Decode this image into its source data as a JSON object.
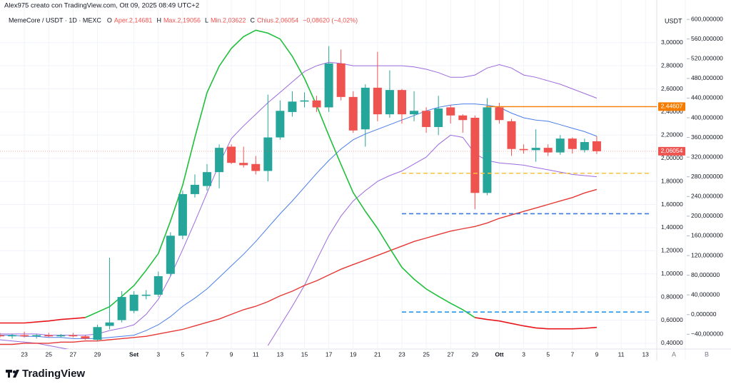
{
  "chart_data": {
    "type": "candlestick",
    "credit": "Alex975 creato con TradingView.com, Ott 09, 2025 08:49 UTC+2",
    "symbol": "MemeCore / USDT · 1D · MEXC",
    "ohlc_legend": [
      "O",
      "Aper.2,14681",
      "H",
      "Max.2,19056",
      "L",
      "Min.2,03622",
      "C",
      "Chius.2,06054",
      "−0,08620 (−4,02%)"
    ],
    "axis_unit": "USDT",
    "pane_labels": [
      "A",
      "B"
    ],
    "brand": "TradingView",
    "categories": [
      null,
      null,
      "23",
      null,
      "25",
      null,
      "27",
      null,
      "29",
      null,
      null,
      "Set",
      null,
      "3",
      null,
      "5",
      null,
      "7",
      null,
      "9",
      null,
      "11",
      null,
      "13",
      null,
      "15",
      null,
      "17",
      null,
      "19",
      null,
      "21",
      null,
      "23",
      null,
      "25",
      null,
      "27",
      null,
      "29",
      null,
      "Ott",
      null,
      "3",
      null,
      "5",
      null,
      "7",
      null,
      "9",
      null,
      "11",
      null,
      "13"
    ],
    "open": [
      0.47,
      0.46,
      0.47,
      0.46,
      0.47,
      0.46,
      0.47,
      0.46,
      0.43,
      0.55,
      0.6,
      0.68,
      0.81,
      0.82,
      1.0,
      1.33,
      1.69,
      1.76,
      1.88,
      2.1,
      1.96,
      1.95,
      1.89,
      2.18,
      2.4,
      2.49,
      2.5,
      2.44,
      2.82,
      2.53,
      2.25,
      2.61,
      2.38,
      2.59,
      2.38,
      2.41,
      2.27,
      2.44,
      2.37,
      2.35,
      1.7,
      2.44,
      2.32,
      2.08,
      2.07,
      2.09,
      2.05,
      2.17,
      2.07,
      2.14681,
      null,
      null,
      null,
      null
    ],
    "high": [
      0.49,
      0.48,
      0.5,
      0.48,
      0.49,
      0.48,
      0.49,
      0.47,
      0.56,
      1.14,
      0.85,
      0.85,
      0.86,
      1.02,
      1.36,
      1.72,
      1.86,
      1.95,
      2.12,
      2.12,
      2.1,
      2.02,
      2.55,
      2.5,
      2.58,
      2.57,
      2.54,
      2.97,
      2.94,
      2.58,
      2.64,
      2.92,
      2.76,
      2.6,
      2.58,
      2.44,
      2.54,
      2.46,
      2.38,
      2.37,
      2.52,
      2.48,
      2.34,
      2.12,
      2.25,
      2.12,
      2.2,
      2.18,
      2.17,
      2.19056,
      null,
      null,
      null,
      null
    ],
    "low": [
      0.45,
      0.44,
      0.45,
      0.44,
      0.45,
      0.45,
      0.45,
      0.43,
      0.42,
      0.52,
      0.58,
      0.66,
      0.78,
      0.8,
      0.98,
      1.3,
      1.66,
      1.72,
      1.74,
      1.95,
      1.92,
      1.86,
      1.8,
      2.16,
      2.36,
      2.44,
      2.4,
      2.4,
      2.5,
      2.22,
      2.1,
      2.32,
      2.35,
      2.3,
      2.32,
      2.22,
      2.2,
      2.3,
      2.22,
      1.56,
      1.68,
      2.3,
      2.02,
      2.04,
      1.97,
      2.02,
      2.03,
      2.04,
      2.05,
      2.03622,
      null,
      null,
      null,
      null
    ],
    "close": [
      0.46,
      0.47,
      0.46,
      0.47,
      0.46,
      0.47,
      0.46,
      0.44,
      0.54,
      0.58,
      0.8,
      0.82,
      0.82,
      0.98,
      1.33,
      1.69,
      1.77,
      1.88,
      2.09,
      1.96,
      1.94,
      1.89,
      2.18,
      2.41,
      2.49,
      2.5,
      2.44,
      2.82,
      2.53,
      2.24,
      2.61,
      2.38,
      2.59,
      2.38,
      2.41,
      2.27,
      2.43,
      2.37,
      2.33,
      1.7,
      2.44,
      2.33,
      2.08,
      2.07,
      2.09,
      2.05,
      2.17,
      2.08,
      2.14,
      2.06054,
      null,
      null,
      null,
      null
    ],
    "up_color": "#26a69a",
    "down_color": "#ef5350",
    "series": [
      {
        "color": "#9c6ade",
        "values": [
          0.48,
          0.48,
          0.48,
          0.48,
          0.47,
          0.47,
          0.47,
          0.47,
          0.48,
          0.51,
          0.53,
          0.56,
          0.65,
          0.78,
          0.98,
          1.21,
          1.45,
          1.7,
          1.95,
          2.17,
          2.28,
          2.38,
          2.48,
          2.57,
          2.66,
          2.75,
          2.8,
          2.83,
          2.82,
          2.8,
          2.8,
          2.8,
          2.8,
          2.8,
          2.79,
          2.77,
          2.74,
          2.7,
          2.7,
          2.72,
          2.78,
          2.81,
          2.78,
          2.72,
          2.7,
          2.67,
          2.64,
          2.6,
          2.56,
          2.52,
          null,
          null,
          null,
          null
        ]
      },
      {
        "color": "#9c6ade",
        "values": [
          0.43,
          0.42,
          0.41,
          0.4,
          0.38,
          0.36,
          0.34,
          null,
          null,
          null,
          null,
          null,
          null,
          null,
          null,
          null,
          null,
          null,
          null,
          null,
          null,
          null,
          0.38,
          0.55,
          0.72,
          0.9,
          1.12,
          1.33,
          1.5,
          1.63,
          1.72,
          1.8,
          1.85,
          1.89,
          1.95,
          2.01,
          2.12,
          2.2,
          2.18,
          2.04,
          1.98,
          1.96,
          1.95,
          1.94,
          1.92,
          1.9,
          1.88,
          1.86,
          1.85,
          1.84,
          null,
          null,
          null,
          null
        ]
      },
      {
        "color": "#4a7ee8",
        "values": [
          0.47,
          0.47,
          0.46,
          0.46,
          0.45,
          0.45,
          0.44,
          0.44,
          0.44,
          0.45,
          0.46,
          0.47,
          0.51,
          0.56,
          0.63,
          0.72,
          0.79,
          0.87,
          0.97,
          1.07,
          1.17,
          1.28,
          1.4,
          1.52,
          1.63,
          1.75,
          1.87,
          1.98,
          2.08,
          2.16,
          2.21,
          2.25,
          2.29,
          2.33,
          2.37,
          2.41,
          2.44,
          2.46,
          2.47,
          2.47,
          2.46,
          2.44,
          2.39,
          2.35,
          2.33,
          2.32,
          2.29,
          2.26,
          2.23,
          2.19,
          null,
          null,
          null,
          null
        ]
      },
      {
        "color": "#e53935",
        "values": [
          0.39,
          0.39,
          0.4,
          0.4,
          0.4,
          0.41,
          0.41,
          0.42,
          0.42,
          0.43,
          0.44,
          0.45,
          0.46,
          0.48,
          0.5,
          0.52,
          0.55,
          0.58,
          0.61,
          0.65,
          0.69,
          0.72,
          0.76,
          0.81,
          0.85,
          0.9,
          0.94,
          0.99,
          1.04,
          1.08,
          1.12,
          1.16,
          1.2,
          1.24,
          1.28,
          1.31,
          1.34,
          1.37,
          1.39,
          1.41,
          1.44,
          1.48,
          1.51,
          1.54,
          1.57,
          1.6,
          1.63,
          1.66,
          1.7,
          1.73,
          null,
          null,
          null,
          null
        ]
      },
      {
        "color": "#1fbf3a",
        "axis": "y2",
        "values": [
          null,
          null,
          null,
          null,
          null,
          null,
          null,
          -6,
          5,
          16,
          37,
          59,
          90,
          124,
          190,
          263,
          360,
          451,
          505,
          541,
          565,
          578,
          572,
          560,
          525,
          480,
          425,
          364,
          305,
          248,
          210,
          175,
          135,
          96,
          72,
          52,
          37,
          23,
          10,
          -6,
          null,
          null,
          null,
          null,
          null,
          null,
          null,
          null,
          null,
          null,
          null,
          null,
          null,
          null
        ]
      },
      {
        "color": "#e8161b",
        "axis": "y2",
        "values": [
          -17,
          -17,
          -17,
          -15,
          -13,
          -10,
          -8,
          -6,
          null,
          null,
          null,
          null,
          null,
          null,
          null,
          null,
          null,
          null,
          null,
          null,
          null,
          null,
          null,
          null,
          null,
          null,
          null,
          null,
          null,
          null,
          null,
          null,
          null,
          null,
          null,
          null,
          null,
          null,
          null,
          -6,
          -10,
          -13,
          -18,
          -23,
          -27,
          -29,
          -29,
          -29,
          -28,
          -26,
          null,
          null,
          null,
          null
        ]
      }
    ],
    "levels": [
      {
        "value": 2.44607,
        "label": "2,44607",
        "color": "#f57c00",
        "dash": false
      },
      {
        "value": 1.87,
        "color": "#f9c23c",
        "dash": true
      },
      {
        "value": 1.52,
        "color": "#3a78e6",
        "dash": true
      },
      {
        "value": 0.67,
        "color": "#2196f3",
        "dash": true
      }
    ],
    "last_price": {
      "value": 2.06054,
      "label": "2,06054",
      "color": "#ef5350"
    },
    "ylim": [
      0.35,
      3.35
    ],
    "yticks": [
      {
        "value": 0.4,
        "label": "0,40000"
      },
      {
        "value": 0.6,
        "label": "0,60000"
      },
      {
        "value": 0.8,
        "label": "0,80000"
      },
      {
        "value": 1.0,
        "label": "1,00000"
      },
      {
        "value": 1.2,
        "label": "1,20000"
      },
      {
        "value": 1.4,
        "label": "1,40000"
      },
      {
        "value": 1.6,
        "label": "1,60000"
      },
      {
        "value": 1.8,
        "label": "1,80000"
      },
      {
        "value": 2.0,
        "label": "2,00000"
      },
      {
        "value": 2.2,
        "label": "2,20000"
      },
      {
        "value": 2.4,
        "label": "2,40000"
      },
      {
        "value": 2.6,
        "label": "2,60000"
      },
      {
        "value": 2.8,
        "label": "2,80000"
      },
      {
        "value": 3.0,
        "label": "3,00000"
      }
    ],
    "y2lim": [
      -70,
      635
    ],
    "y2ticks": [
      {
        "value": -40,
        "label": "−40,000000"
      },
      {
        "value": 0,
        "label": "0,000000"
      },
      {
        "value": 40,
        "label": "40,000000"
      },
      {
        "value": 80,
        "label": "80,000000"
      },
      {
        "value": 120,
        "label": "120,000000"
      },
      {
        "value": 160,
        "label": "160,000000"
      },
      {
        "value": 200,
        "label": "200,000000"
      },
      {
        "value": 240,
        "label": "240,000000"
      },
      {
        "value": 280,
        "label": "280,000000"
      },
      {
        "value": 320,
        "label": "320,000000"
      },
      {
        "value": 360,
        "label": "360,000000"
      },
      {
        "value": 400,
        "label": "400,000000"
      },
      {
        "value": 440,
        "label": "440,000000"
      },
      {
        "value": 480,
        "label": "480,000000"
      },
      {
        "value": 520,
        "label": "520,000000"
      },
      {
        "value": 560,
        "label": "560,000000"
      },
      {
        "value": 600,
        "label": "600,000000"
      }
    ],
    "grid": true
  }
}
